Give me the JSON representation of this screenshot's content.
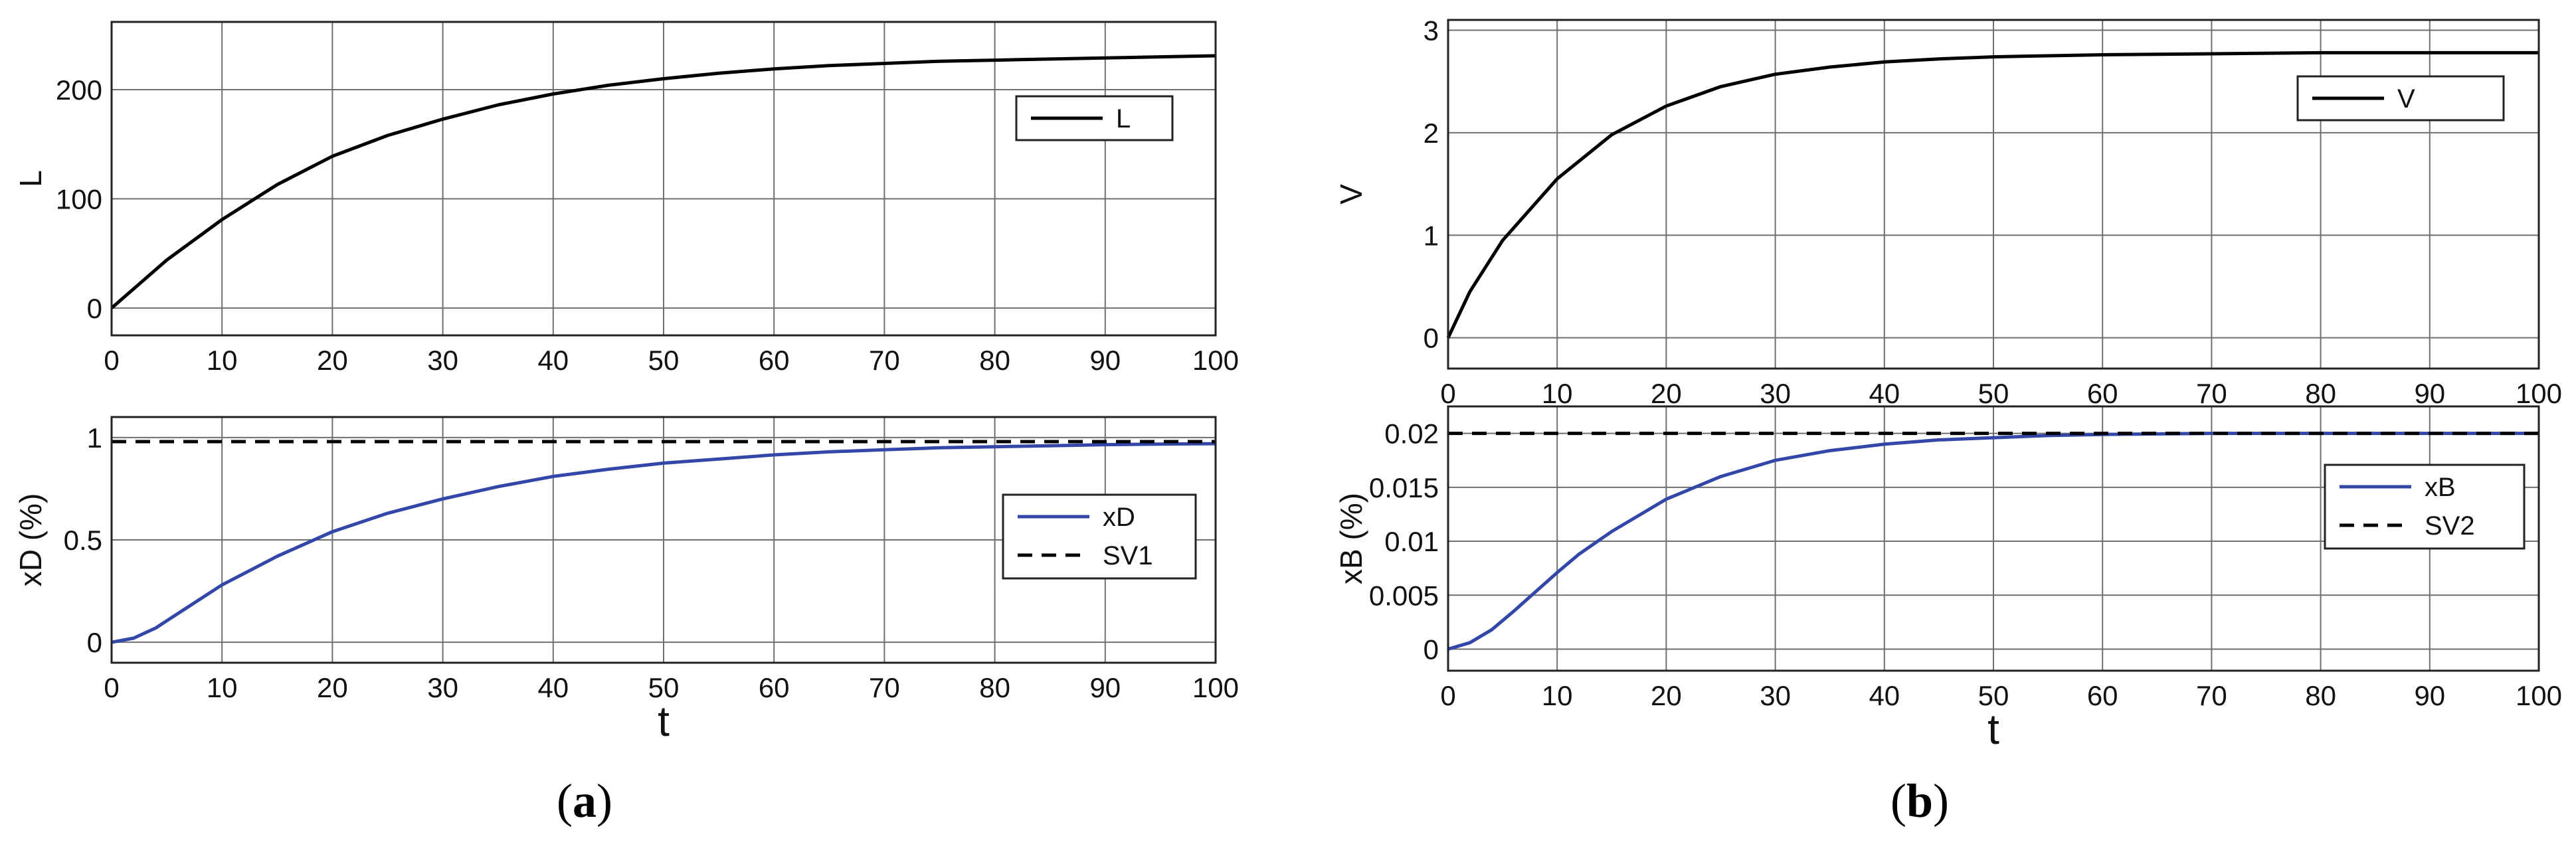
{
  "figure": {
    "sublabel_a": "a",
    "sublabel_b": "b"
  },
  "chart_data": [
    {
      "type": "line",
      "panel": "a-top",
      "xlabel": "",
      "ylabel": "L",
      "xlim": [
        0,
        100
      ],
      "ylim": [
        -25,
        262
      ],
      "xticks": [
        0,
        10,
        20,
        30,
        40,
        50,
        60,
        70,
        80,
        90,
        100
      ],
      "yticks": [
        0,
        100,
        200
      ],
      "ytick_labels": [
        "0",
        "100",
        "200"
      ],
      "grid": true,
      "legend": "top-right",
      "series": [
        {
          "name": "L",
          "color": "#000000",
          "style": "solid",
          "x": [
            0,
            5,
            10,
            15,
            20,
            25,
            30,
            35,
            40,
            45,
            50,
            55,
            60,
            65,
            70,
            75,
            80,
            85,
            90,
            95,
            100
          ],
          "y": [
            0,
            44,
            81,
            113,
            139,
            158,
            173,
            186,
            196,
            204,
            210,
            215,
            219,
            222,
            224,
            226,
            227,
            228,
            229,
            230,
            231
          ]
        }
      ]
    },
    {
      "type": "line",
      "panel": "a-bottom",
      "xlabel": "t",
      "ylabel": "xD (%)",
      "xlim": [
        0,
        100
      ],
      "ylim": [
        -0.1,
        1.1
      ],
      "xticks": [
        0,
        10,
        20,
        30,
        40,
        50,
        60,
        70,
        80,
        90,
        100
      ],
      "yticks": [
        0,
        0.5,
        1
      ],
      "ytick_labels": [
        "0",
        "0.5",
        "1"
      ],
      "grid": true,
      "legend": "right",
      "series": [
        {
          "name": "xD",
          "color": "#3347a8",
          "style": "solid",
          "x": [
            0,
            2,
            4,
            6,
            8,
            10,
            15,
            20,
            25,
            30,
            35,
            40,
            45,
            50,
            55,
            60,
            65,
            70,
            75,
            80,
            85,
            90,
            95,
            100
          ],
          "y": [
            0,
            0.02,
            0.07,
            0.14,
            0.21,
            0.28,
            0.42,
            0.54,
            0.63,
            0.7,
            0.76,
            0.81,
            0.845,
            0.875,
            0.895,
            0.915,
            0.93,
            0.94,
            0.95,
            0.955,
            0.96,
            0.965,
            0.968,
            0.97
          ]
        },
        {
          "name": "SV1",
          "color": "#000000",
          "style": "dashed",
          "x": [
            0,
            100
          ],
          "y": [
            0.98,
            0.98
          ]
        }
      ]
    },
    {
      "type": "line",
      "panel": "b-top",
      "xlabel": "",
      "ylabel": "V",
      "xlim": [
        0,
        100
      ],
      "ylim": [
        -0.3,
        3.1
      ],
      "xticks": [
        0,
        10,
        20,
        30,
        40,
        50,
        60,
        70,
        80,
        90,
        100
      ],
      "yticks": [
        0,
        1,
        2,
        3
      ],
      "ytick_labels": [
        "0",
        "1",
        "2",
        "3"
      ],
      "grid": true,
      "legend": "top-right",
      "series": [
        {
          "name": "V",
          "color": "#000000",
          "style": "solid",
          "x": [
            0,
            2,
            5,
            10,
            15,
            20,
            25,
            30,
            35,
            40,
            45,
            50,
            55,
            60,
            70,
            80,
            90,
            100
          ],
          "y": [
            0,
            0.45,
            0.95,
            1.55,
            1.98,
            2.26,
            2.45,
            2.57,
            2.64,
            2.69,
            2.72,
            2.74,
            2.75,
            2.76,
            2.77,
            2.78,
            2.78,
            2.78
          ]
        }
      ]
    },
    {
      "type": "line",
      "panel": "b-bottom",
      "xlabel": "t",
      "ylabel": "xB (%)",
      "xlim": [
        0,
        100
      ],
      "ylim": [
        -0.002,
        0.0225
      ],
      "xticks": [
        0,
        10,
        20,
        30,
        40,
        50,
        60,
        70,
        80,
        90,
        100
      ],
      "yticks": [
        0,
        0.005,
        0.01,
        0.015,
        0.02
      ],
      "ytick_labels": [
        "0",
        "0.005",
        "0.01",
        "0.015",
        "0.02"
      ],
      "grid": true,
      "legend": "right",
      "series": [
        {
          "name": "xB",
          "color": "#3347a8",
          "style": "solid",
          "x": [
            0,
            2,
            4,
            6,
            8,
            10,
            12,
            15,
            20,
            25,
            30,
            35,
            40,
            45,
            50,
            55,
            60,
            70,
            80,
            90,
            100
          ],
          "y": [
            0,
            0.0006,
            0.0018,
            0.0035,
            0.0053,
            0.0071,
            0.0088,
            0.0109,
            0.0139,
            0.016,
            0.0175,
            0.0184,
            0.019,
            0.0194,
            0.0196,
            0.0198,
            0.0199,
            0.02,
            0.02,
            0.02,
            0.02
          ]
        },
        {
          "name": "SV2",
          "color": "#000000",
          "style": "dashed",
          "x": [
            0,
            100
          ],
          "y": [
            0.02,
            0.02
          ]
        }
      ]
    }
  ]
}
